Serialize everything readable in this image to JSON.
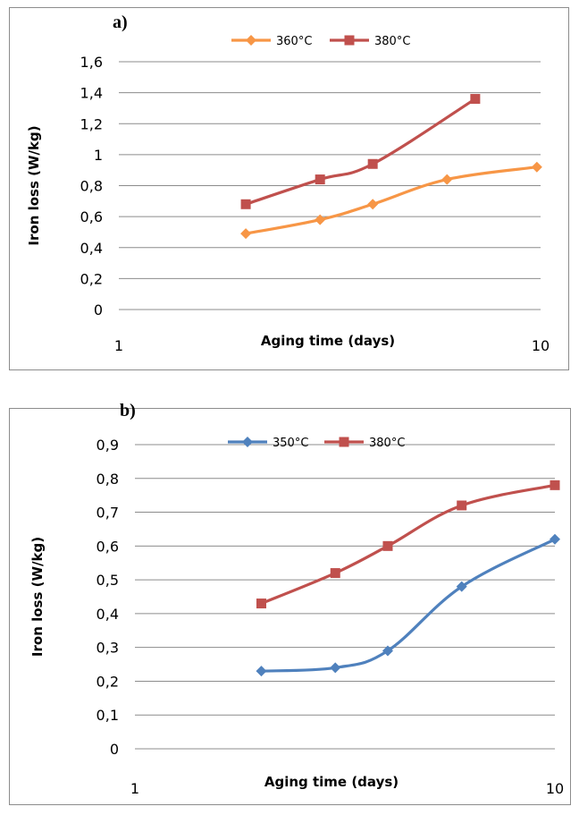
{
  "chart_data": [
    {
      "type": "line",
      "panel_label": "a)",
      "xlabel": "Aging time (days)",
      "ylabel": "Iron loss (W/kg)",
      "xscale": "log",
      "xlim": [
        1,
        10
      ],
      "ylim": [
        0,
        1.6
      ],
      "ystep": 0.2,
      "x_ticks": [
        "1",
        "10"
      ],
      "y_ticks": [
        "0",
        "0,2",
        "0,4",
        "0,6",
        "0,8",
        "1",
        "1,2",
        "1,4",
        "1,6"
      ],
      "grid": true,
      "legend_position": "top",
      "series": [
        {
          "name": "360°C",
          "color": "#F79646",
          "marker": "diamond",
          "x": [
            2,
            3,
            4,
            6,
            9.8
          ],
          "y": [
            0.49,
            0.58,
            0.68,
            0.84,
            0.92
          ]
        },
        {
          "name": "380°C",
          "color": "#C0504D",
          "marker": "square",
          "x": [
            2,
            3,
            4,
            7
          ],
          "y": [
            0.68,
            0.84,
            0.94,
            1.36
          ]
        }
      ]
    },
    {
      "type": "line",
      "panel_label": "b)",
      "xlabel": "Aging time (days)",
      "ylabel": "Iron loss (W/kg)",
      "xscale": "log",
      "xlim": [
        1,
        10
      ],
      "ylim": [
        0,
        0.9
      ],
      "ystep": 0.1,
      "x_ticks": [
        "1",
        "10"
      ],
      "y_ticks": [
        "0",
        "0,1",
        "0,2",
        "0,3",
        "0,4",
        "0,5",
        "0,6",
        "0,7",
        "0,8",
        "0,9"
      ],
      "grid": true,
      "legend_position": "top",
      "series": [
        {
          "name": "350°C",
          "color": "#4F81BD",
          "marker": "diamond",
          "x": [
            2,
            3,
            4,
            6,
            10
          ],
          "y": [
            0.23,
            0.24,
            0.29,
            0.48,
            0.62
          ]
        },
        {
          "name": "380°C",
          "color": "#C0504D",
          "marker": "square",
          "x": [
            2,
            3,
            4,
            6,
            10
          ],
          "y": [
            0.43,
            0.52,
            0.6,
            0.72,
            0.78
          ]
        }
      ]
    }
  ]
}
